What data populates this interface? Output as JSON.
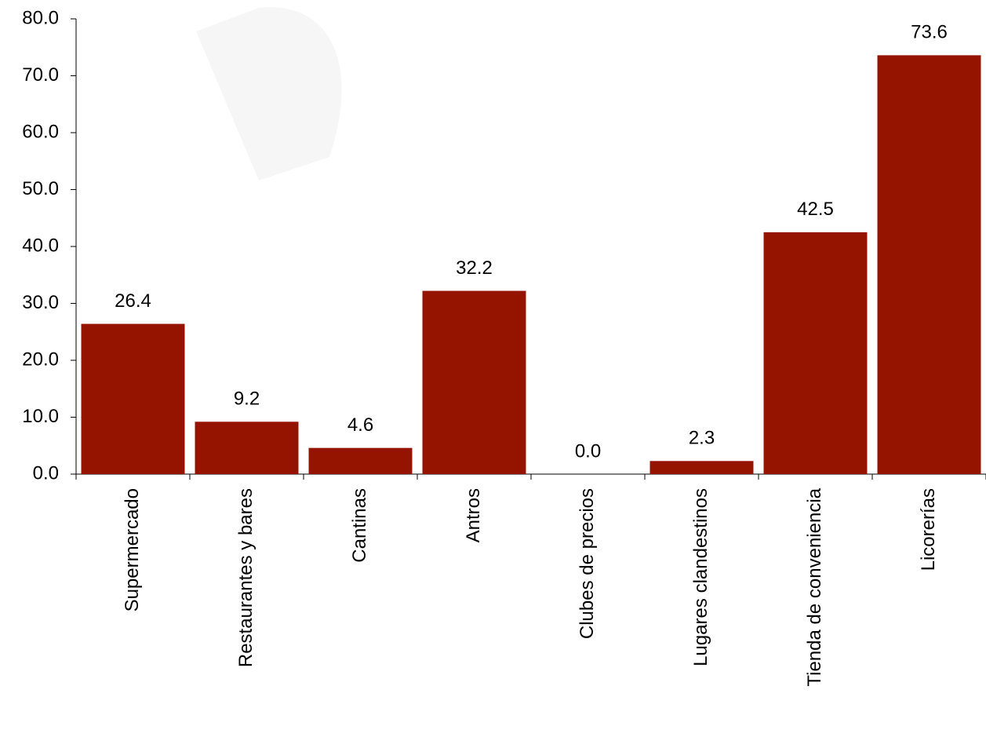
{
  "chart_data": {
    "type": "bar",
    "categories": [
      "Supermercado",
      "Restaurantes y bares",
      "Cantinas",
      "Antros",
      "Clubes de precios",
      "Lugares clandestinos",
      "Tienda de conveniencia",
      "Licorerías"
    ],
    "values": [
      26.4,
      9.2,
      4.6,
      32.2,
      0.0,
      2.3,
      42.5,
      73.6
    ],
    "value_labels": [
      "26.4",
      "9.2",
      "4.6",
      "32.2",
      "0.0",
      "2.3",
      "42.5",
      "73.6"
    ],
    "color": "#941400",
    "ylim": [
      0,
      80
    ],
    "yticks": [
      {
        "value": 0,
        "label": "0.0"
      },
      {
        "value": 10,
        "label": "10.0"
      },
      {
        "value": 20,
        "label": "20.0"
      },
      {
        "value": 30,
        "label": "30.0"
      },
      {
        "value": 40,
        "label": "40.0"
      },
      {
        "value": 50,
        "label": "50.0"
      },
      {
        "value": 60,
        "label": "60.0"
      },
      {
        "value": 70,
        "label": "70.0"
      },
      {
        "value": 80,
        "label": "80.0"
      }
    ],
    "grid": false
  }
}
